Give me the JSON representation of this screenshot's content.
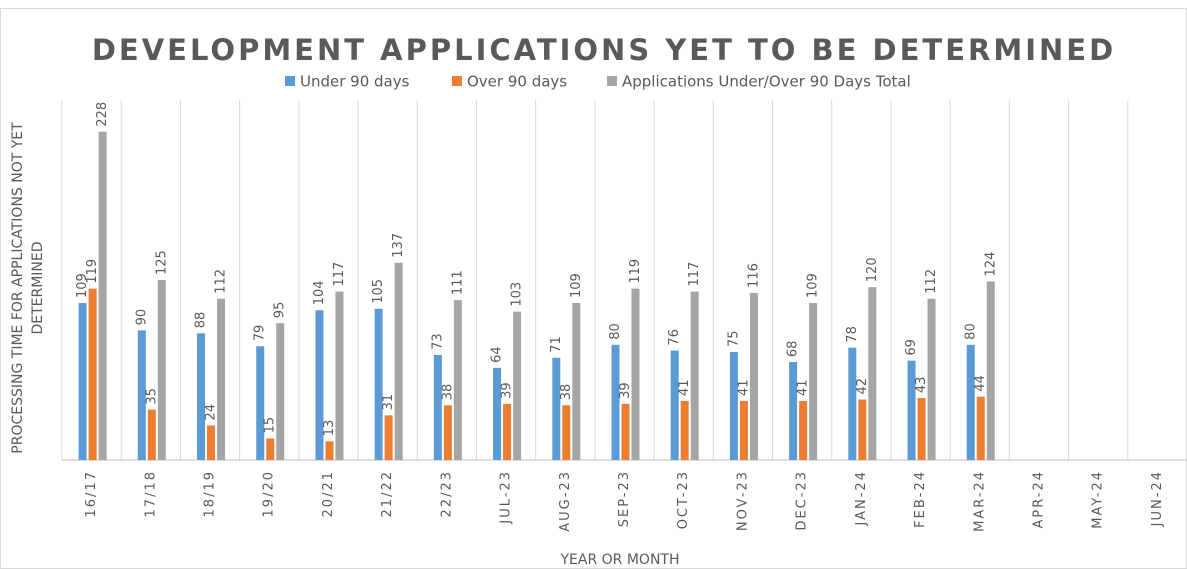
{
  "chart_data": {
    "type": "bar",
    "title": "DEVELOPMENT APPLICATIONS YET TO BE DETERMINED",
    "x_label": "YEAR OR MONTH",
    "y_label": "PROCESSING TIME FOR APPLICATIONS NOT YET DETERMINED",
    "categories": [
      "16/17",
      "17/18",
      "18/19",
      "19/20",
      "20/21",
      "21/22",
      "22/23",
      "JUL-23",
      "AUG-23",
      "SEP-23",
      "OCT-23",
      "NOV-23",
      "DEC-23",
      "JAN-24",
      "FEB-24",
      "MAR-24",
      "APR-24",
      "MAY-24",
      "JUN-24"
    ],
    "series": [
      {
        "name": "Under 90 days",
        "color": "#5b9bd5",
        "values": [
          109,
          90,
          88,
          79,
          104,
          105,
          73,
          64,
          71,
          80,
          76,
          75,
          68,
          78,
          69,
          80,
          null,
          null,
          null
        ]
      },
      {
        "name": "Over 90 days",
        "color": "#ed7d31",
        "values": [
          119,
          35,
          24,
          15,
          13,
          31,
          38,
          39,
          38,
          39,
          41,
          41,
          41,
          42,
          43,
          44,
          null,
          null,
          null
        ]
      },
      {
        "name": "Applications Under/Over 90 Days Total",
        "color": "#a5a5a5",
        "values": [
          228,
          125,
          112,
          95,
          117,
          137,
          111,
          103,
          109,
          119,
          117,
          116,
          109,
          120,
          112,
          124,
          null,
          null,
          null
        ]
      }
    ],
    "ylim": [
      0,
      250
    ],
    "legend": "top"
  }
}
